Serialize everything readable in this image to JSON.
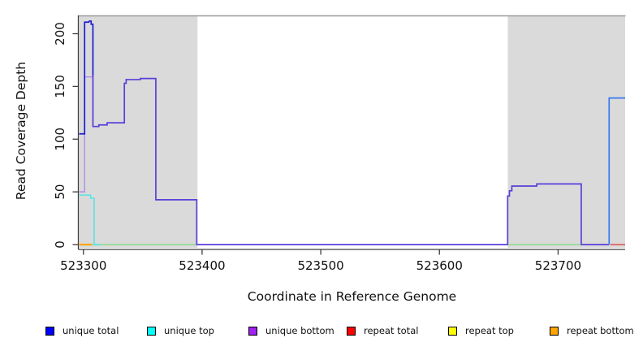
{
  "chart_data": {
    "type": "line",
    "title": "",
    "xlabel": "Coordinate in Reference Genome",
    "ylabel": "Read Coverage Depth",
    "xlim": [
      523296.4,
      523756.5
    ],
    "ylim": [
      0,
      215
    ],
    "x_ticks": [
      523300,
      523400,
      523500,
      523600,
      523700
    ],
    "y_ticks": [
      0,
      50,
      100,
      150,
      200
    ],
    "grid": false,
    "legend_position": "bottom",
    "repeat_region_shading": {
      "color": "#dadada",
      "regions_x": [
        [
          523296.4,
          523396.1
        ],
        [
          523657.6,
          523756.5
        ]
      ]
    },
    "series": [
      {
        "name": "repeat bottom",
        "color": "#ffa500",
        "width": 2.2,
        "points": [
          [
            523296.4,
            0
          ],
          [
            523307,
            0
          ]
        ]
      },
      {
        "name": "repeat total",
        "color": "#e04c4c",
        "width": 1.6,
        "points": [
          [
            523744,
            0
          ],
          [
            523756.5,
            0
          ]
        ]
      },
      {
        "name": "baseline left (top+bottom at zero)",
        "color": "#8bd98b",
        "width": 1.4,
        "points": [
          [
            523307,
            0
          ],
          [
            523395.5,
            0
          ]
        ]
      },
      {
        "name": "baseline right (top+bottom at zero)",
        "color": "#8bd98b",
        "width": 1.4,
        "points": [
          [
            523658,
            0
          ],
          [
            523719,
            0
          ]
        ]
      },
      {
        "name": "unique top",
        "color": "#4de4e4",
        "width": 1.4,
        "points": [
          [
            523296.4,
            47
          ],
          [
            523306,
            47
          ],
          [
            523306,
            44
          ],
          [
            523309,
            44
          ],
          [
            523309,
            0
          ],
          [
            523314,
            0
          ]
        ]
      },
      {
        "name": "unique bottom",
        "color": "#b48ae6",
        "width": 1.4,
        "points": [
          [
            523296.4,
            50
          ],
          [
            523301,
            50
          ],
          [
            523301,
            159
          ],
          [
            523308,
            159
          ],
          [
            523308,
            112
          ]
        ]
      },
      {
        "name": "unique total (left peak)",
        "color": "#1c1cd2",
        "width": 1.7,
        "points": [
          [
            523296.4,
            105
          ],
          [
            523301,
            105
          ],
          [
            523301,
            211
          ],
          [
            523304.5,
            211
          ],
          [
            523305,
            212
          ],
          [
            523306.5,
            212
          ],
          [
            523306.5,
            209
          ],
          [
            523308,
            209
          ],
          [
            523308,
            160
          ]
        ]
      },
      {
        "name": "unique total + bottom merged",
        "color": "#5a3fd9",
        "width": 1.7,
        "points": [
          [
            523308,
            160
          ],
          [
            523308,
            112
          ],
          [
            523313,
            112
          ],
          [
            523313,
            113.5
          ],
          [
            523320,
            113.5
          ],
          [
            523320,
            115.5
          ],
          [
            523334.5,
            115.5
          ],
          [
            523334.5,
            153
          ],
          [
            523336,
            153
          ],
          [
            523336,
            156.5
          ],
          [
            523348,
            156.5
          ],
          [
            523348,
            157.5
          ],
          [
            523361,
            157.5
          ],
          [
            523361,
            42.5
          ],
          [
            523395.5,
            42.5
          ],
          [
            523395.5,
            0
          ],
          [
            523657.5,
            0
          ],
          [
            523657.5,
            46
          ],
          [
            523659,
            46
          ],
          [
            523659,
            51
          ],
          [
            523661,
            51
          ],
          [
            523661,
            55.5
          ],
          [
            523682,
            55.5
          ],
          [
            523682,
            57.5
          ],
          [
            523719.5,
            57.5
          ],
          [
            523719.5,
            0
          ],
          [
            523743,
            0
          ]
        ]
      },
      {
        "name": "unique total (right spike)",
        "color": "#3c78f0",
        "width": 1.7,
        "points": [
          [
            523743,
            0
          ],
          [
            523743,
            139
          ],
          [
            523756.5,
            139
          ]
        ]
      }
    ]
  },
  "axes": {
    "x_title": "Coordinate in Reference Genome",
    "y_title": "Read Coverage Depth"
  },
  "legend": {
    "items": [
      {
        "label": "unique total",
        "color": "#0000ff"
      },
      {
        "label": "unique top",
        "color": "#00ffff"
      },
      {
        "label": "unique bottom",
        "color": "#a021f0"
      },
      {
        "label": "repeat total",
        "color": "#ff0000"
      },
      {
        "label": "repeat top",
        "color": "#ffff00"
      },
      {
        "label": "repeat bottom",
        "color": "#ffa500"
      }
    ]
  }
}
